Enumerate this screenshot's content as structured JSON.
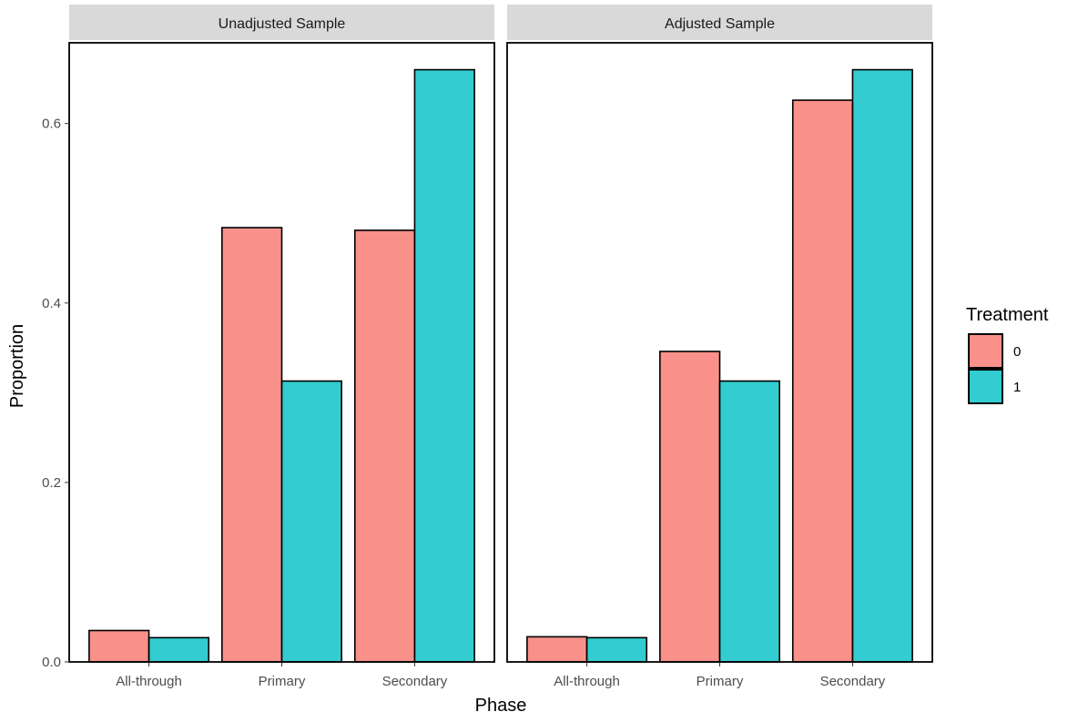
{
  "chart_data": {
    "type": "bar",
    "facets": [
      "Unadjusted Sample",
      "Adjusted Sample"
    ],
    "categories": [
      "All-through",
      "Primary",
      "Secondary"
    ],
    "xlabel": "Phase",
    "ylabel": "Proportion",
    "ylim": [
      0,
      0.69
    ],
    "yticks": [
      0.0,
      0.2,
      0.4,
      0.6
    ],
    "ytick_labels": [
      "0.0",
      "0.2",
      "0.4",
      "0.6"
    ],
    "legend": {
      "title": "Treatment",
      "position": "right",
      "entries": [
        {
          "label": "0",
          "color": "#F8766D"
        },
        {
          "label": "1",
          "color": "#00BFC4"
        }
      ]
    },
    "series": [
      {
        "name": "0",
        "color": "#F8766D",
        "values": {
          "Unadjusted Sample": [
            0.035,
            0.484,
            0.481
          ],
          "Adjusted Sample": [
            0.028,
            0.346,
            0.626
          ]
        }
      },
      {
        "name": "1",
        "color": "#00BFC4",
        "values": {
          "Unadjusted Sample": [
            0.027,
            0.313,
            0.66
          ],
          "Adjusted Sample": [
            0.027,
            0.313,
            0.66
          ]
        }
      }
    ],
    "grid": false,
    "theme": "classic",
    "bar_alpha": 0.8
  }
}
